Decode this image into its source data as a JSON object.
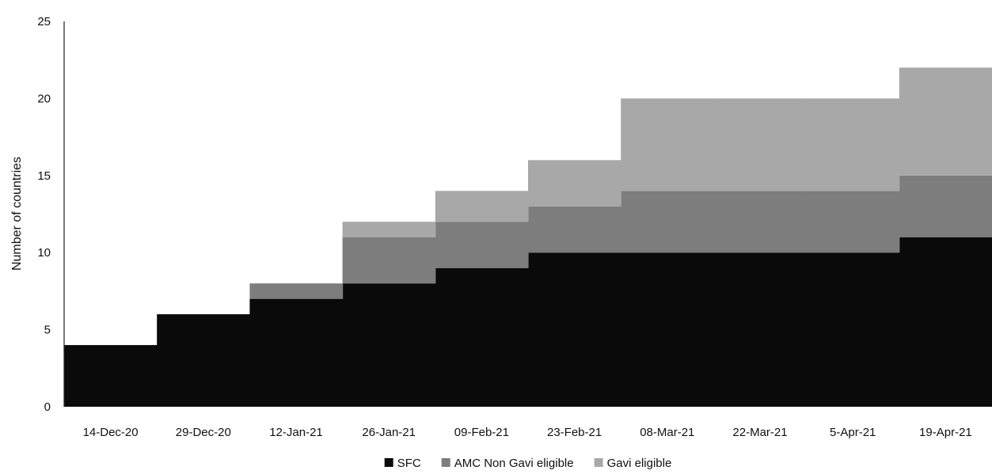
{
  "chart_data": {
    "type": "area",
    "subtype": "stacked-step",
    "title": "",
    "xlabel": "",
    "ylabel": "Number of countries",
    "ylim": [
      0,
      25
    ],
    "yticks": [
      0,
      5,
      10,
      15,
      20,
      25
    ],
    "grid": false,
    "legend_position": "bottom",
    "categories": [
      "14-Dec-20",
      "29-Dec-20",
      "12-Jan-21",
      "26-Jan-21",
      "09-Feb-21",
      "23-Feb-21",
      "08-Mar-21",
      "22-Mar-21",
      "5-Apr-21",
      "19-Apr-21"
    ],
    "series": [
      {
        "name": "SFC",
        "color": "#0a0a0a",
        "values": [
          4,
          6,
          7,
          8,
          9,
          10,
          10,
          10,
          10,
          11
        ]
      },
      {
        "name": "AMC Non Gavi eligible",
        "color": "#7d7d7d",
        "values": [
          0,
          0,
          1,
          3,
          3,
          3,
          4,
          4,
          4,
          4
        ]
      },
      {
        "name": "Gavi eligible",
        "color": "#a8a8a8",
        "values": [
          0,
          0,
          0,
          1,
          2,
          3,
          6,
          6,
          6,
          7
        ]
      }
    ]
  }
}
